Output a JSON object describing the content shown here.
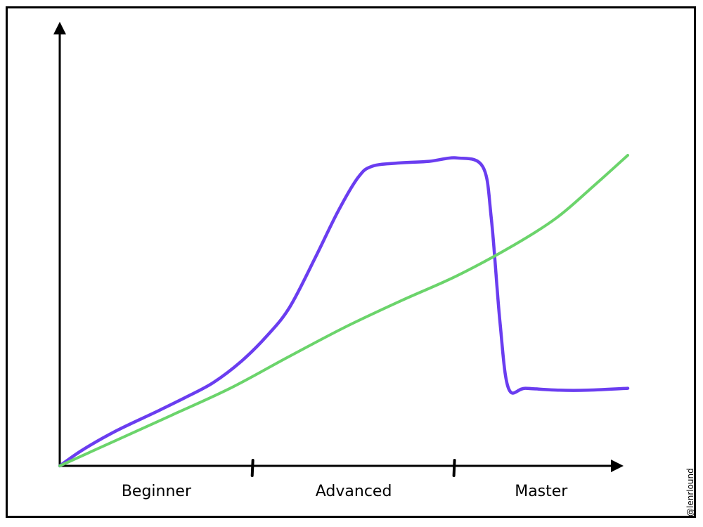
{
  "chart_data": {
    "type": "line",
    "title": "",
    "xlabel": "",
    "ylabel": "",
    "categories": [
      "Beginner",
      "Advanced",
      "Master"
    ],
    "category_boundaries": [
      0.34,
      0.695
    ],
    "xlim": [
      0,
      1
    ],
    "ylim": [
      0,
      1
    ],
    "grid": false,
    "legend": "none",
    "series": [
      {
        "color": "#6a3df0",
        "x": [
          0.0,
          0.04,
          0.1,
          0.17,
          0.22,
          0.27,
          0.32,
          0.365,
          0.405,
          0.45,
          0.49,
          0.525,
          0.55,
          0.6,
          0.65,
          0.7,
          0.745,
          0.76,
          0.775,
          0.79,
          0.82,
          0.88,
          0.93,
          1.0
        ],
        "y": [
          0.0,
          0.042,
          0.093,
          0.143,
          0.18,
          0.22,
          0.277,
          0.344,
          0.42,
          0.551,
          0.673,
          0.762,
          0.792,
          0.801,
          0.805,
          0.814,
          0.79,
          0.65,
          0.38,
          0.205,
          0.205,
          0.2,
          0.2,
          0.205
        ]
      },
      {
        "color": "#6bd46b",
        "x": [
          0.0,
          0.1,
          0.2,
          0.3,
          0.4,
          0.5,
          0.6,
          0.7,
          0.8,
          0.875,
          0.94,
          1.0
        ],
        "y": [
          0.0,
          0.068,
          0.136,
          0.205,
          0.286,
          0.365,
          0.436,
          0.503,
          0.584,
          0.656,
          0.74,
          0.821
        ]
      }
    ]
  },
  "credit": {
    "text": "@lenrlound"
  }
}
